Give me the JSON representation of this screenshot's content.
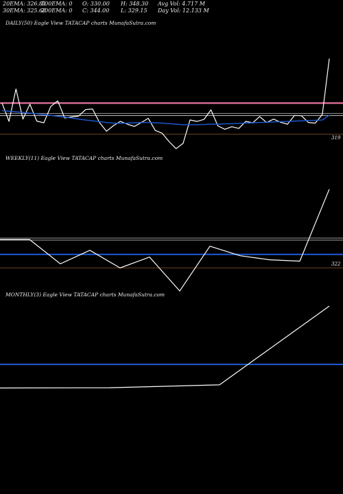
{
  "stats": {
    "ema20": "20EMA: 326.81",
    "ema30": "30EMA: 325.68",
    "ema100": "100EMA: 0",
    "ema200": "200EMA: 0",
    "open": "O: 330.00",
    "close": "C: 344.00",
    "high": "H: 348.30",
    "low": "L: 329.15",
    "avg_vol": "Avg Vol: 4.717 M",
    "day_vol": "Day Vol: 12.133 M"
  },
  "colors": {
    "background": "#000000",
    "price_line": "#ffffff",
    "ma_blue": "#1f5bd6",
    "ma_pink": "#e5739f",
    "grey_level": "#9a9a9a",
    "brown_level": "#8b5a2b"
  },
  "chart_data": [
    {
      "type": "line",
      "title": "DAILY(50) Eagle  View  TATACAP charts MunafaSutra.com",
      "price_label": "319",
      "ylim": [
        313,
        352
      ],
      "levels": {
        "pink": 330.0,
        "grey": 326.3,
        "brown": 319.0
      },
      "series": [
        {
          "values": [
            330.0,
            323.5,
            335.0,
            324.3,
            329.6,
            323.6,
            323.0,
            328.8,
            330.8,
            324.7,
            325.1,
            325.4,
            327.7,
            327.9,
            323.1,
            320.0,
            322.0,
            323.5,
            322.5,
            321.7,
            323.1,
            324.6,
            320.3,
            319.3,
            316.3,
            313.8,
            315.7,
            324.0,
            323.5,
            324.2,
            327.6,
            321.9,
            320.7,
            321.6,
            321.0,
            323.5,
            323.0,
            325.2,
            323.1,
            324.3,
            323.2,
            322.5,
            325.6,
            325.5,
            323.1,
            322.9,
            326.0,
            345.8
          ]
        },
        {
          "values": [
            327.3,
            327.1,
            326.9,
            326.7,
            326.4,
            326.2,
            325.9,
            325.6,
            325.3,
            325.0,
            324.7,
            324.3,
            324.0,
            323.7,
            323.4,
            323.1,
            322.9,
            322.8,
            322.9,
            323.0,
            323.1,
            323.1,
            323.0,
            322.9,
            322.7,
            322.5,
            322.3,
            322.3,
            322.3,
            322.4,
            322.5,
            322.5,
            322.6,
            322.7,
            322.8,
            322.9,
            323.0,
            323.1,
            323.2,
            323.3,
            323.4,
            323.5,
            323.6,
            323.7,
            323.8,
            323.9,
            324.0,
            325.7
          ]
        }
      ]
    },
    {
      "type": "line",
      "title": "WEEKLY(11) Eagle  View  TATACAP charts MunafaSutra.com",
      "price_label": "322",
      "ylim": [
        310,
        353
      ],
      "levels": {
        "grey": 331.0,
        "blue": 325.0,
        "brown": 320.0
      },
      "series": [
        {
          "values": [
            330.5,
            330.5,
            321.5,
            326.5,
            320.0,
            324.0,
            311.5,
            328.0,
            324.5,
            323.0,
            322.5,
            349.0
          ]
        }
      ]
    },
    {
      "type": "line",
      "title": "MONTHLY(3) Eagle  View  TATACAP charts MunafaSutra.com",
      "ylim": [
        315,
        352
      ],
      "levels": {
        "blue": 330.0
      },
      "series": [
        {
          "values": [
            322.5,
            322.6,
            323.5,
            348.5
          ]
        }
      ]
    }
  ]
}
